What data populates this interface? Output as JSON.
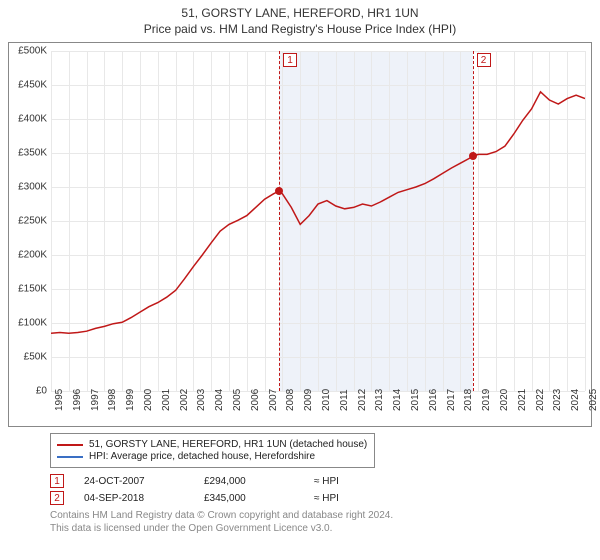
{
  "title": "51, GORSTY LANE, HEREFORD, HR1 1UN",
  "subtitle": "Price paid vs. HM Land Registry's House Price Index (HPI)",
  "chart": {
    "type": "line",
    "x_start_year": 1995,
    "x_end_year": 2025,
    "y_min": 0,
    "y_max": 500000,
    "y_tick_step": 50000,
    "y_tick_labels": [
      "£0",
      "£50K",
      "£100K",
      "£150K",
      "£200K",
      "£250K",
      "£300K",
      "£350K",
      "£400K",
      "£450K",
      "£500K"
    ],
    "x_tick_years": [
      1995,
      1996,
      1997,
      1998,
      1999,
      2000,
      2001,
      2002,
      2003,
      2004,
      2005,
      2006,
      2007,
      2008,
      2009,
      2010,
      2011,
      2012,
      2013,
      2014,
      2015,
      2016,
      2017,
      2018,
      2019,
      2020,
      2021,
      2022,
      2023,
      2024,
      2025
    ],
    "background_color": "#ffffff",
    "grid_color": "#e8e8e8",
    "shaded_region": {
      "from_year": 2007.81,
      "to_year": 2018.68,
      "color": "#eef2f9"
    },
    "series_main": {
      "color": "#c01818",
      "width": 1.5,
      "points": [
        [
          1995.0,
          85000
        ],
        [
          1995.5,
          86000
        ],
        [
          1996.0,
          85000
        ],
        [
          1996.5,
          86000
        ],
        [
          1997.0,
          88000
        ],
        [
          1997.5,
          92000
        ],
        [
          1998.0,
          95000
        ],
        [
          1998.5,
          99000
        ],
        [
          1999.0,
          101000
        ],
        [
          1999.5,
          108000
        ],
        [
          2000.0,
          116000
        ],
        [
          2000.5,
          124000
        ],
        [
          2001.0,
          130000
        ],
        [
          2001.5,
          138000
        ],
        [
          2002.0,
          148000
        ],
        [
          2002.5,
          165000
        ],
        [
          2003.0,
          183000
        ],
        [
          2003.5,
          200000
        ],
        [
          2004.0,
          218000
        ],
        [
          2004.5,
          235000
        ],
        [
          2005.0,
          245000
        ],
        [
          2005.5,
          251000
        ],
        [
          2006.0,
          258000
        ],
        [
          2006.5,
          270000
        ],
        [
          2007.0,
          282000
        ],
        [
          2007.5,
          290000
        ],
        [
          2007.81,
          294000
        ],
        [
          2008.0,
          290000
        ],
        [
          2008.5,
          270000
        ],
        [
          2009.0,
          245000
        ],
        [
          2009.5,
          258000
        ],
        [
          2010.0,
          275000
        ],
        [
          2010.5,
          280000
        ],
        [
          2011.0,
          272000
        ],
        [
          2011.5,
          268000
        ],
        [
          2012.0,
          270000
        ],
        [
          2012.5,
          275000
        ],
        [
          2013.0,
          272000
        ],
        [
          2013.5,
          278000
        ],
        [
          2014.0,
          285000
        ],
        [
          2014.5,
          292000
        ],
        [
          2015.0,
          296000
        ],
        [
          2015.5,
          300000
        ],
        [
          2016.0,
          305000
        ],
        [
          2016.5,
          312000
        ],
        [
          2017.0,
          320000
        ],
        [
          2017.5,
          328000
        ],
        [
          2018.0,
          335000
        ],
        [
          2018.5,
          342000
        ],
        [
          2018.68,
          345000
        ],
        [
          2019.0,
          348000
        ],
        [
          2019.5,
          348000
        ],
        [
          2020.0,
          352000
        ],
        [
          2020.5,
          360000
        ],
        [
          2021.0,
          378000
        ],
        [
          2021.5,
          398000
        ],
        [
          2022.0,
          415000
        ],
        [
          2022.5,
          440000
        ],
        [
          2023.0,
          428000
        ],
        [
          2023.5,
          422000
        ],
        [
          2024.0,
          430000
        ],
        [
          2024.5,
          435000
        ],
        [
          2025.0,
          430000
        ]
      ]
    },
    "events": [
      {
        "n": 1,
        "year": 2007.81,
        "value": 294000
      },
      {
        "n": 2,
        "year": 2018.68,
        "value": 345000
      }
    ]
  },
  "legend": {
    "items": [
      {
        "label": "51, GORSTY LANE, HEREFORD, HR1 1UN (detached house)",
        "color": "#c01818"
      },
      {
        "label": "HPI: Average price, detached house, Herefordshire",
        "color": "#3a6fc4"
      }
    ]
  },
  "transactions": [
    {
      "n": "1",
      "date": "24-OCT-2007",
      "price": "£294,000",
      "rel": "≈ HPI"
    },
    {
      "n": "2",
      "date": "04-SEP-2018",
      "price": "£345,000",
      "rel": "≈ HPI"
    }
  ],
  "attribution": {
    "line1": "Contains HM Land Registry data © Crown copyright and database right 2024.",
    "line2": "This data is licensed under the Open Government Licence v3.0."
  }
}
